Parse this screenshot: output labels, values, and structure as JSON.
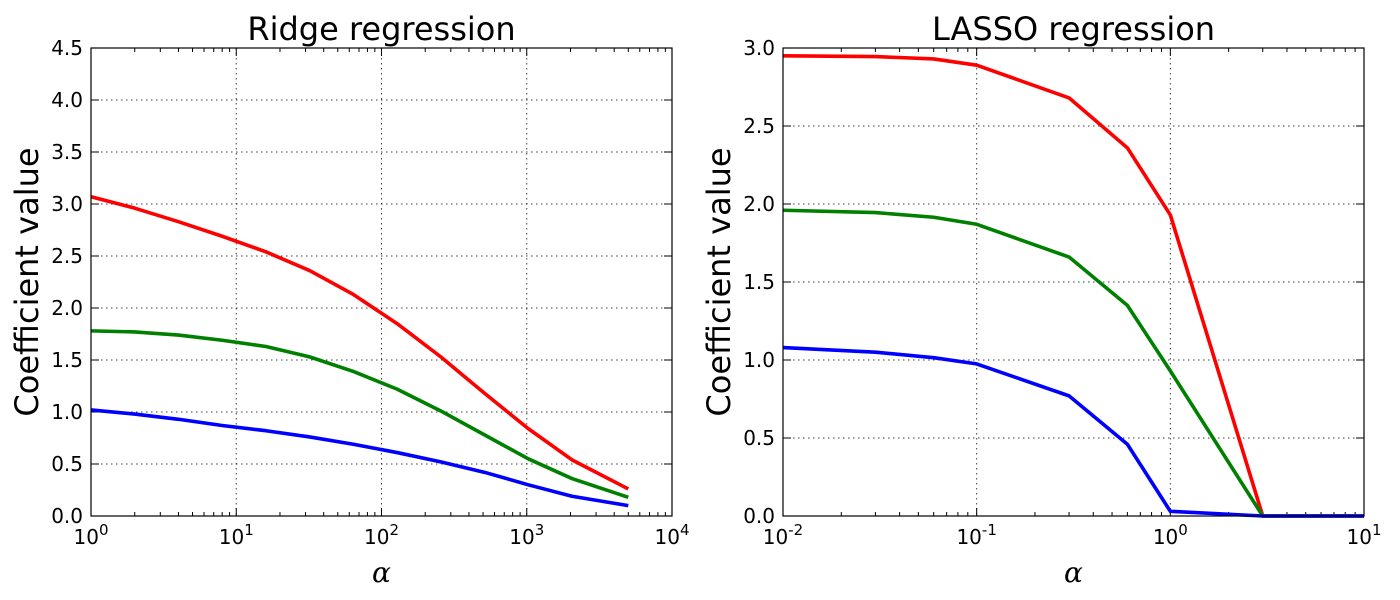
{
  "chart_data": [
    {
      "type": "line",
      "title": "Ridge regression",
      "xlabel": "α",
      "ylabel": "Coefficient value",
      "xscale": "log",
      "xlim": [
        1,
        10000
      ],
      "ylim": [
        0.0,
        4.5
      ],
      "yticks": [
        "0.0",
        "0.5",
        "1.0",
        "1.5",
        "2.0",
        "2.5",
        "3.0",
        "3.5",
        "4.0",
        "4.5"
      ],
      "xticks": [
        {
          "base": "10",
          "exp": "0"
        },
        {
          "base": "10",
          "exp": "1"
        },
        {
          "base": "10",
          "exp": "2"
        },
        {
          "base": "10",
          "exp": "3"
        },
        {
          "base": "10",
          "exp": "4"
        }
      ],
      "grid": true,
      "x": [
        1,
        2,
        4,
        8,
        16,
        32,
        64,
        128,
        256,
        512,
        1024,
        2048,
        5000
      ],
      "series": [
        {
          "color": "#ff0000",
          "values": [
            3.07,
            2.96,
            2.83,
            2.69,
            2.54,
            2.36,
            2.13,
            1.85,
            1.53,
            1.18,
            0.84,
            0.54,
            0.26
          ]
        },
        {
          "color": "#008000",
          "values": [
            1.78,
            1.77,
            1.74,
            1.69,
            1.63,
            1.53,
            1.39,
            1.22,
            1.01,
            0.78,
            0.55,
            0.36,
            0.18
          ]
        },
        {
          "color": "#0000ff",
          "values": [
            1.02,
            0.98,
            0.93,
            0.87,
            0.82,
            0.76,
            0.69,
            0.61,
            0.52,
            0.42,
            0.3,
            0.19,
            0.1
          ]
        }
      ]
    },
    {
      "type": "line",
      "title": "LASSO regression",
      "xlabel": "α",
      "ylabel": "Coefficient value",
      "xscale": "log",
      "xlim": [
        0.01,
        10
      ],
      "ylim": [
        0.0,
        3.0
      ],
      "yticks": [
        "0.0",
        "0.5",
        "1.0",
        "1.5",
        "2.0",
        "2.5",
        "3.0"
      ],
      "xticks": [
        {
          "base": "10",
          "exp": "-2"
        },
        {
          "base": "10",
          "exp": "-1"
        },
        {
          "base": "10",
          "exp": "0"
        },
        {
          "base": "10",
          "exp": "1"
        }
      ],
      "grid": true,
      "x": [
        0.01,
        0.03,
        0.06,
        0.1,
        0.3,
        0.6,
        1.0,
        3.0,
        10.0
      ],
      "series": [
        {
          "color": "#ff0000",
          "values": [
            2.95,
            2.945,
            2.93,
            2.89,
            2.68,
            2.36,
            1.93,
            0.0,
            0.0
          ]
        },
        {
          "color": "#008000",
          "values": [
            1.96,
            1.945,
            1.915,
            1.87,
            1.66,
            1.35,
            0.93,
            0.0,
            0.0
          ]
        },
        {
          "color": "#0000ff",
          "values": [
            1.08,
            1.05,
            1.015,
            0.975,
            0.77,
            0.46,
            0.03,
            0.0,
            0.0
          ]
        }
      ]
    }
  ]
}
